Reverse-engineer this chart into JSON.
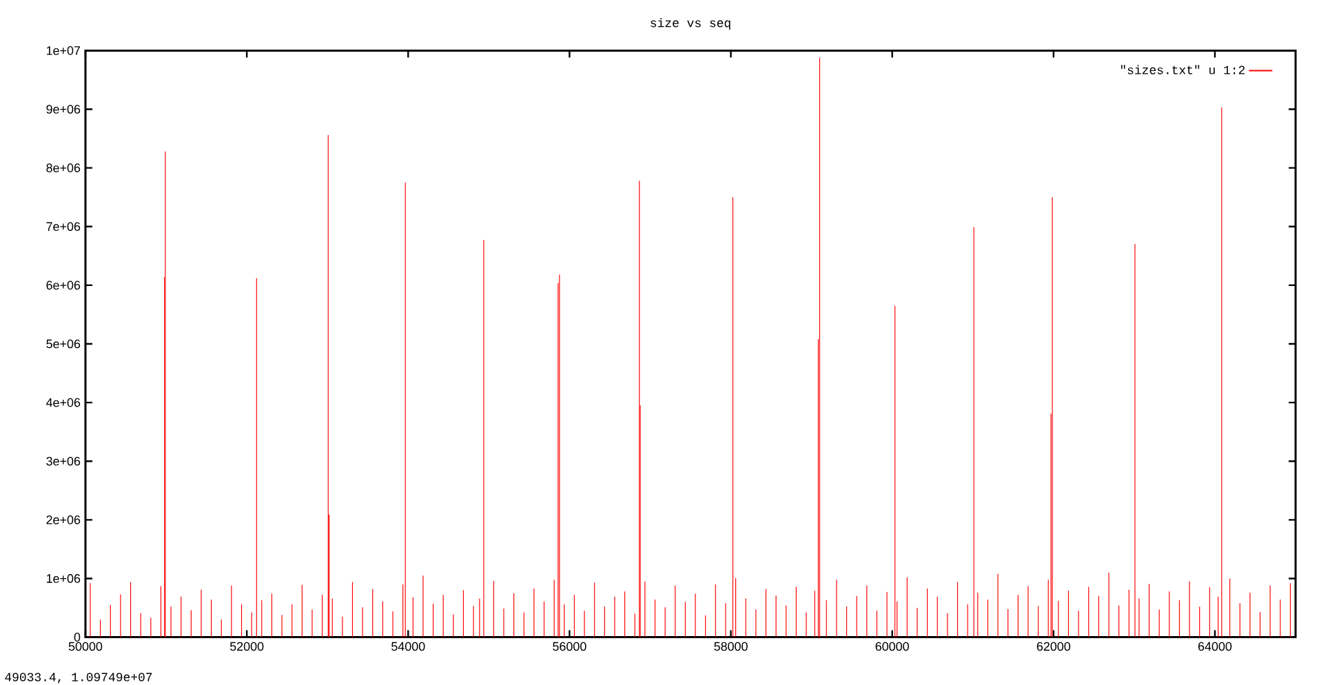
{
  "chart_data": {
    "type": "bar",
    "title": "size vs seq",
    "xlim": [
      50000,
      65000
    ],
    "ylim": [
      0,
      10000000
    ],
    "xticks": [
      50000,
      52000,
      54000,
      56000,
      58000,
      60000,
      62000,
      64000
    ],
    "yticks": [
      0,
      {
        "value": 1000000,
        "label": "1e+06"
      },
      {
        "value": 2000000,
        "label": "2e+06"
      },
      {
        "value": 3000000,
        "label": "3e+06"
      },
      {
        "value": 4000000,
        "label": "4e+06"
      },
      {
        "value": 5000000,
        "label": "5e+06"
      },
      {
        "value": 6000000,
        "label": "6e+06"
      },
      {
        "value": 7000000,
        "label": "7e+06"
      },
      {
        "value": 8000000,
        "label": "8e+06"
      },
      {
        "value": 9000000,
        "label": "9e+06"
      },
      {
        "value": 10000000,
        "label": "1e+07"
      }
    ],
    "legend": "top right",
    "annotations": [
      "49033.4,  1.09749e+07"
    ],
    "series": [
      {
        "name": "\"sizes.txt\" u 1:2",
        "color": "#ff0000",
        "x": [
          50060,
          50185,
          50310,
          50435,
          50560,
          50685,
          50810,
          50935,
          50980,
          50990,
          51060,
          51185,
          51310,
          51435,
          51560,
          51685,
          51810,
          51935,
          52060,
          52121,
          52185,
          52310,
          52435,
          52560,
          52685,
          52810,
          52935,
          53009,
          53020,
          53060,
          53185,
          53310,
          53435,
          53560,
          53685,
          53810,
          53935,
          53965,
          54060,
          54185,
          54310,
          54435,
          54560,
          54685,
          54810,
          54885,
          54937,
          55060,
          55185,
          55310,
          55435,
          55560,
          55685,
          55810,
          55859,
          55876,
          55935,
          56060,
          56185,
          56310,
          56435,
          56560,
          56685,
          56810,
          56866,
          56877,
          56935,
          57060,
          57185,
          57310,
          57435,
          57560,
          57685,
          57810,
          57935,
          58025,
          58060,
          58185,
          58310,
          58435,
          58560,
          58685,
          58810,
          58935,
          59040,
          59084,
          59101,
          59185,
          59310,
          59435,
          59560,
          59685,
          59810,
          59935,
          60034,
          60060,
          60185,
          60310,
          60435,
          60560,
          60685,
          60810,
          60935,
          61012,
          61060,
          61185,
          61310,
          61435,
          61560,
          61685,
          61810,
          61935,
          61968,
          61985,
          62060,
          62185,
          62310,
          62435,
          62560,
          62685,
          62810,
          62935,
          63009,
          63060,
          63185,
          63310,
          63435,
          63560,
          63685,
          63810,
          63935,
          64040,
          64084,
          64185,
          64310,
          64435,
          64560,
          64685,
          64810,
          64935
        ],
        "values": [
          920000,
          300000,
          550000,
          730000,
          940000,
          410000,
          330000,
          870000,
          6140000,
          8280000,
          520000,
          690000,
          460000,
          810000,
          640000,
          300000,
          880000,
          560000,
          420000,
          6120000,
          630000,
          740000,
          380000,
          560000,
          890000,
          470000,
          720000,
          8560000,
          2090000,
          660000,
          350000,
          940000,
          510000,
          820000,
          610000,
          440000,
          900000,
          7750000,
          680000,
          1050000,
          570000,
          720000,
          390000,
          800000,
          530000,
          660000,
          6770000,
          960000,
          490000,
          750000,
          420000,
          830000,
          610000,
          980000,
          6040000,
          6180000,
          560000,
          720000,
          450000,
          930000,
          520000,
          690000,
          780000,
          400000,
          7780000,
          3950000,
          950000,
          640000,
          510000,
          880000,
          600000,
          740000,
          370000,
          900000,
          580000,
          7500000,
          1010000,
          660000,
          470000,
          820000,
          710000,
          540000,
          860000,
          420000,
          790000,
          5080000,
          9880000,
          630000,
          980000,
          520000,
          700000,
          880000,
          450000,
          770000,
          5650000,
          610000,
          1020000,
          500000,
          830000,
          690000,
          410000,
          940000,
          560000,
          6990000,
          760000,
          640000,
          1080000,
          480000,
          720000,
          870000,
          530000,
          980000,
          3810000,
          7500000,
          620000,
          790000,
          450000,
          860000,
          700000,
          1100000,
          540000,
          810000,
          6700000,
          660000,
          910000,
          470000,
          780000,
          630000,
          950000,
          520000,
          850000,
          690000,
          9030000,
          1000000,
          580000,
          760000,
          430000,
          880000,
          640000,
          920000
        ]
      }
    ]
  }
}
